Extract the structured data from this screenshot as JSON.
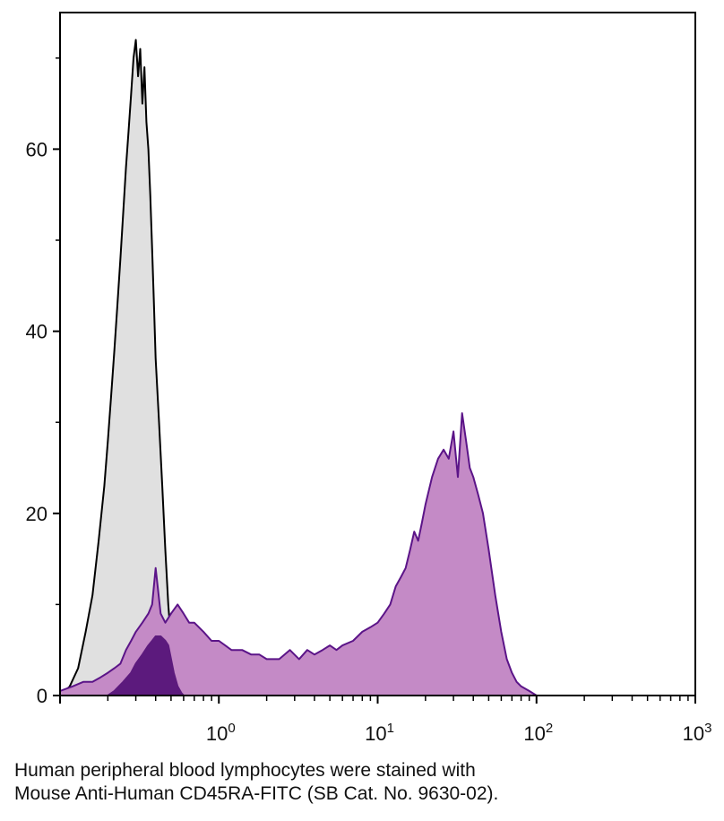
{
  "chart_data": {
    "type": "area",
    "xscale": "log",
    "xlim": [
      0.1,
      1000
    ],
    "ylim": [
      0,
      75
    ],
    "x_ticks": [
      {
        "base": "10",
        "exp": "0",
        "value": 1
      },
      {
        "base": "10",
        "exp": "1",
        "value": 10
      },
      {
        "base": "10",
        "exp": "2",
        "value": 100
      },
      {
        "base": "10",
        "exp": "3",
        "value": 1000
      }
    ],
    "y_ticks": [
      {
        "label": "0",
        "value": 0
      },
      {
        "label": "20",
        "value": 20
      },
      {
        "label": "40",
        "value": 40
      },
      {
        "label": "60",
        "value": 60
      }
    ],
    "y_minor_ticks": [
      10,
      30,
      50,
      70
    ],
    "grid": false,
    "legend": "none",
    "series": [
      {
        "fill": "#e0e0e0",
        "stroke": "#000000",
        "x": [
          0.1,
          0.115,
          0.13,
          0.145,
          0.16,
          0.175,
          0.19,
          0.2,
          0.21,
          0.22,
          0.23,
          0.24,
          0.25,
          0.26,
          0.27,
          0.28,
          0.29,
          0.3,
          0.31,
          0.32,
          0.33,
          0.34,
          0.35,
          0.36,
          0.37,
          0.38,
          0.39,
          0.4,
          0.42,
          0.44,
          0.46,
          0.48,
          0.5,
          0.52,
          0.54,
          0.56,
          0.58,
          0.6,
          0.63,
          0.66,
          0.7,
          0.75,
          0.8,
          0.9,
          1.0
        ],
        "y": [
          0,
          1,
          3,
          7,
          11,
          17,
          23,
          28,
          33,
          38,
          43,
          48,
          53,
          58,
          62,
          66,
          70,
          72,
          68,
          71,
          65,
          69,
          63,
          60,
          55,
          49,
          43,
          37,
          30,
          23,
          16,
          10,
          6,
          4,
          2.5,
          1.5,
          1,
          0.6,
          0.4,
          0.3,
          0.2,
          0.1,
          0.05,
          0,
          0
        ]
      },
      {
        "fill": "#c48ac6",
        "stroke": "#5b1488",
        "x": [
          0.1,
          0.12,
          0.14,
          0.16,
          0.18,
          0.2,
          0.22,
          0.24,
          0.26,
          0.28,
          0.3,
          0.33,
          0.36,
          0.38,
          0.4,
          0.43,
          0.46,
          0.5,
          0.55,
          0.6,
          0.65,
          0.7,
          0.8,
          0.9,
          1.0,
          1.2,
          1.4,
          1.6,
          1.8,
          2.0,
          2.4,
          2.8,
          3.2,
          3.6,
          4.0,
          4.5,
          5.0,
          5.5,
          6.0,
          7.0,
          8.0,
          9.0,
          10,
          11,
          12,
          13,
          14,
          15,
          16,
          17,
          18,
          19,
          20,
          22,
          24,
          26,
          28,
          30,
          32,
          34,
          36,
          38,
          40,
          43,
          46,
          50,
          55,
          60,
          65,
          70,
          75,
          80,
          90,
          100
        ],
        "y": [
          0.5,
          1,
          1.5,
          1.5,
          2,
          2.5,
          3,
          3.5,
          5,
          6,
          7,
          8,
          9,
          10,
          14,
          9,
          8,
          9,
          10,
          9,
          8,
          8,
          7,
          6,
          6,
          5,
          5,
          4.5,
          4.5,
          4,
          4,
          5,
          4,
          5,
          4.5,
          5,
          5.5,
          5,
          5.5,
          6,
          7,
          7.5,
          8,
          9,
          10,
          12,
          13,
          14,
          16,
          18,
          17,
          19,
          21,
          24,
          26,
          27,
          26,
          29,
          24,
          31,
          28,
          25,
          24,
          22,
          20,
          16,
          11,
          7,
          4,
          2.5,
          1.5,
          1,
          0.5,
          0
        ]
      },
      {
        "fill": "#5c1a7d",
        "stroke": "#5c1a7d",
        "x": [
          0.2,
          0.22,
          0.25,
          0.28,
          0.3,
          0.33,
          0.36,
          0.38,
          0.4,
          0.43,
          0.46,
          0.48,
          0.5,
          0.52,
          0.55,
          0.58,
          0.6
        ],
        "y": [
          0,
          0.5,
          1.5,
          2.5,
          3.5,
          4.5,
          5.5,
          6,
          6.5,
          6.5,
          6,
          5.5,
          4,
          2.5,
          1,
          0.3,
          0
        ]
      }
    ]
  },
  "caption": {
    "line1": "Human peripheral blood lymphocytes were stained with",
    "line2": "Mouse Anti-Human CD45RA-FITC (SB Cat. No. 9630-02)."
  }
}
